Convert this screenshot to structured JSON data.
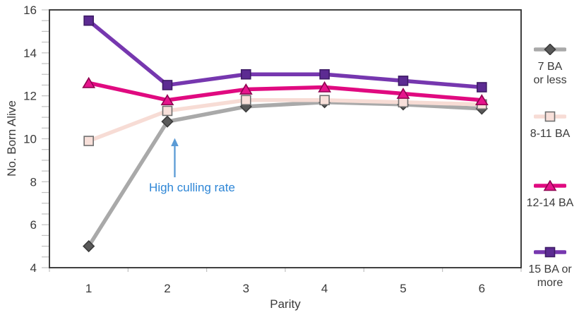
{
  "chart_data": {
    "type": "line",
    "title": "",
    "xlabel": "Parity",
    "ylabel": "No. Born Alive",
    "categories": [
      1,
      2,
      3,
      4,
      5,
      6
    ],
    "x_tick_labels": [
      "1",
      "2",
      "3",
      "4",
      "5",
      "6"
    ],
    "y_tick_labels": [
      "4",
      "6",
      "8",
      "10",
      "12",
      "14",
      "16"
    ],
    "ylim": [
      4,
      16
    ],
    "y_major_step": 2,
    "y_minor_step": 0.5,
    "grid": "off",
    "legend_position": "right",
    "series": [
      {
        "name": "7 BA or less",
        "legend_label": "7 BA\nor less",
        "marker": "diamond",
        "line_color": "#A9A9A9",
        "marker_fill": "#595959",
        "marker_stroke": "#3C3C3C",
        "values": [
          5.0,
          10.8,
          11.5,
          11.7,
          11.6,
          11.4
        ]
      },
      {
        "name": "8-11 BA",
        "legend_label": "8-11 BA",
        "marker": "square",
        "line_color": "#F7DCD5",
        "marker_fill": "#F8E0DA",
        "marker_stroke": "#6F6F6F",
        "values": [
          9.9,
          11.3,
          11.8,
          11.8,
          11.7,
          11.6
        ]
      },
      {
        "name": "12-14 BA",
        "legend_label": "12-14 BA",
        "marker": "triangle",
        "line_color": "#E00A80",
        "marker_fill": "#E6148C",
        "marker_stroke": "#8F0350",
        "values": [
          12.6,
          11.8,
          12.3,
          12.4,
          12.1,
          11.8
        ]
      },
      {
        "name": "15 BA or more",
        "legend_label": "15 BA or\nmore",
        "marker": "square",
        "line_color": "#7637AF",
        "marker_fill": "#5C2B92",
        "marker_stroke": "#3E1C66",
        "values": [
          15.5,
          12.5,
          13.0,
          13.0,
          12.7,
          12.4
        ]
      }
    ],
    "annotation": {
      "text": "High culling rate",
      "text_color": "#2E86D6",
      "arrow_color": "#5B9BD5"
    },
    "colors": {
      "axis_border": "#2B2B2B",
      "tick": "#C0C0C0",
      "text": "#3A3A3A",
      "background": "#FFFFFF"
    }
  }
}
